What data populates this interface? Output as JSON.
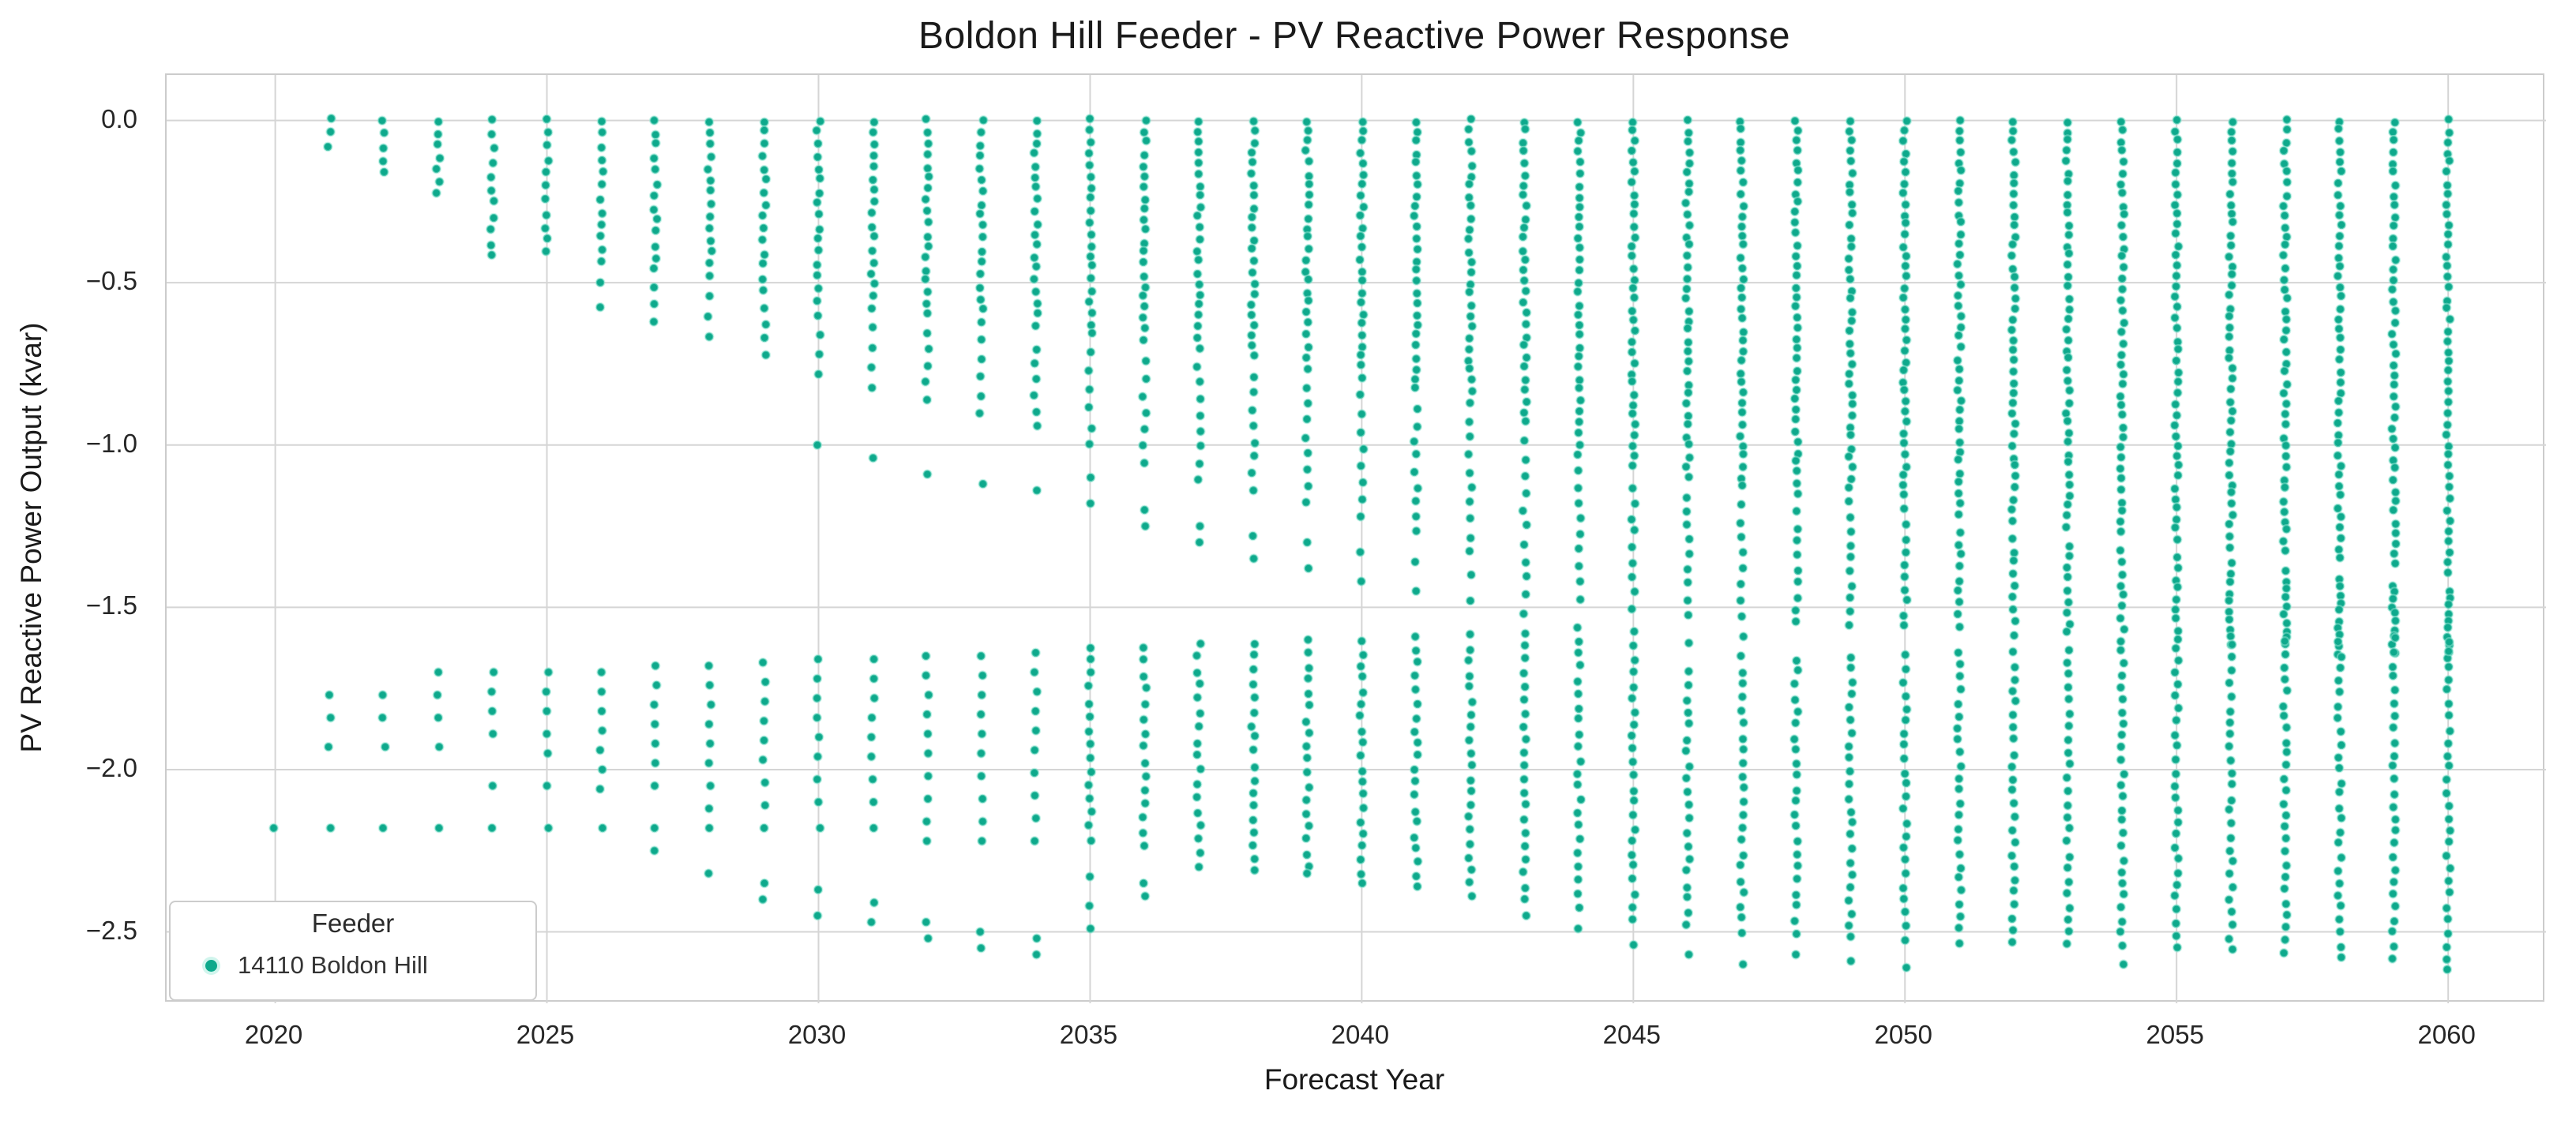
{
  "colors": {
    "marker_fill": "#0ea98c",
    "marker_rim": "#8de6d1",
    "grid": "#d5d5d5",
    "spine": "#cccccc",
    "title_text": "#1a1a1a",
    "tick_text": "#262626"
  },
  "chart_data": {
    "type": "scatter",
    "title": "Boldon Hill Feeder - PV Reactive Power Response",
    "xlabel": "Forecast Year",
    "ylabel": "PV Reactive Power Output (kvar)",
    "grid": true,
    "xlim": [
      2018.0,
      2061.8
    ],
    "ylim": [
      -2.72,
      0.14
    ],
    "xticks": [
      {
        "v": 2020,
        "label": "2020"
      },
      {
        "v": 2025,
        "label": "2025"
      },
      {
        "v": 2030,
        "label": "2030"
      },
      {
        "v": 2035,
        "label": "2035"
      },
      {
        "v": 2040,
        "label": "2040"
      },
      {
        "v": 2045,
        "label": "2045"
      },
      {
        "v": 2050,
        "label": "2050"
      },
      {
        "v": 2055,
        "label": "2055"
      },
      {
        "v": 2060,
        "label": "2060"
      }
    ],
    "yticks": [
      {
        "v": 0.0,
        "label": "0.0"
      },
      {
        "v": -0.5,
        "label": "−0.5"
      },
      {
        "v": -1.0,
        "label": "−1.0"
      },
      {
        "v": -1.5,
        "label": "−1.5"
      },
      {
        "v": -2.0,
        "label": "−2.0"
      },
      {
        "v": -2.5,
        "label": "−2.5"
      }
    ],
    "legend": {
      "title": "Feeder",
      "position": "lower left",
      "entries": [
        {
          "label": "14110 Boldon Hill",
          "marker": "dot",
          "color": "#0ea98c"
        }
      ]
    },
    "series": [
      {
        "name": "14110 Boldon Hill",
        "note": "Each year column: seg = [yStart, yEnd, nPoints] runs of kvar values; pts = individual kvar values.",
        "years": [
          {
            "y": 2020,
            "seg": [],
            "pts": [
              -2.18
            ]
          },
          {
            "y": 2021,
            "seg": [
              [
                0,
                -0.08,
                3
              ]
            ],
            "pts": [
              -1.77,
              -1.84,
              -1.93,
              -2.18
            ]
          },
          {
            "y": 2022,
            "seg": [
              [
                0,
                -0.16,
                5
              ]
            ],
            "pts": [
              -1.77,
              -1.84,
              -1.93,
              -2.18
            ]
          },
          {
            "y": 2023,
            "seg": [
              [
                0,
                -0.22,
                7
              ]
            ],
            "pts": [
              -1.7,
              -1.77,
              -1.84,
              -1.93,
              -2.18
            ]
          },
          {
            "y": 2024,
            "seg": [
              [
                0,
                -0.34,
                9
              ],
              [
                -0.39,
                -0.42,
                2
              ]
            ],
            "pts": [
              -1.7,
              -1.76,
              -1.82,
              -1.89,
              -2.05,
              -2.18
            ]
          },
          {
            "y": 2025,
            "seg": [
              [
                0,
                -0.41,
                11
              ]
            ],
            "pts": [
              -1.7,
              -1.76,
              -1.82,
              -1.89,
              -1.95,
              -2.05,
              -2.18
            ]
          },
          {
            "y": 2026,
            "seg": [
              [
                0,
                -0.44,
                12
              ],
              [
                -0.5,
                -0.58,
                2
              ]
            ],
            "pts": [
              -1.7,
              -1.76,
              -1.82,
              -1.88,
              -1.94,
              -2.0,
              -2.06,
              -2.18
            ]
          },
          {
            "y": 2027,
            "seg": [
              [
                0,
                -0.46,
                13
              ],
              [
                -0.52,
                -0.62,
                3
              ]
            ],
            "pts": [
              -1.68,
              -1.74,
              -1.8,
              -1.86,
              -1.92,
              -1.98,
              -2.05,
              -2.18,
              -2.25
            ]
          },
          {
            "y": 2028,
            "seg": [
              [
                0,
                -0.48,
                14
              ],
              [
                -0.54,
                -0.66,
                3
              ]
            ],
            "pts": [
              -1.68,
              -1.74,
              -1.8,
              -1.86,
              -1.92,
              -1.98,
              -2.05,
              -2.12,
              -2.18,
              -2.32
            ]
          },
          {
            "y": 2029,
            "seg": [
              [
                0,
                -0.52,
                15
              ],
              [
                -0.58,
                -0.72,
                4
              ]
            ],
            "pts": [
              -1.67,
              -1.73,
              -1.79,
              -1.85,
              -1.91,
              -1.97,
              -2.04,
              -2.11,
              -2.18,
              -2.35,
              -2.4
            ]
          },
          {
            "y": 2030,
            "seg": [
              [
                0,
                -0.55,
                16
              ],
              [
                -0.6,
                -0.78,
                4
              ]
            ],
            "pts": [
              -1.0,
              -1.66,
              -1.72,
              -1.78,
              -1.84,
              -1.9,
              -1.96,
              -2.03,
              -2.1,
              -2.18,
              -2.37,
              -2.45
            ]
          },
          {
            "y": 2031,
            "seg": [
              [
                0,
                -0.58,
                17
              ],
              [
                -0.64,
                -0.82,
                4
              ]
            ],
            "pts": [
              -1.04,
              -1.66,
              -1.72,
              -1.78,
              -1.84,
              -1.9,
              -1.96,
              -2.03,
              -2.1,
              -2.18,
              -2.41,
              -2.47
            ]
          },
          {
            "y": 2032,
            "seg": [
              [
                0,
                -0.6,
                18
              ],
              [
                -0.66,
                -0.86,
                5
              ]
            ],
            "pts": [
              -1.09,
              -1.65,
              -1.71,
              -1.77,
              -1.83,
              -1.89,
              -1.95,
              -2.02,
              -2.09,
              -2.16,
              -2.22,
              -2.47,
              -2.52
            ]
          },
          {
            "y": 2033,
            "seg": [
              [
                0,
                -0.62,
                18
              ],
              [
                -0.68,
                -0.9,
                5
              ]
            ],
            "pts": [
              -1.12,
              -1.65,
              -1.71,
              -1.77,
              -1.83,
              -1.89,
              -1.95,
              -2.02,
              -2.09,
              -2.16,
              -2.22,
              -2.5,
              -2.55
            ]
          },
          {
            "y": 2034,
            "seg": [
              [
                0,
                -0.63,
                19
              ],
              [
                -0.7,
                -0.94,
                6
              ]
            ],
            "pts": [
              -1.14,
              -1.64,
              -1.7,
              -1.76,
              -1.82,
              -1.88,
              -1.94,
              -2.01,
              -2.08,
              -2.15,
              -2.22,
              -2.52,
              -2.57
            ]
          },
          {
            "y": 2035,
            "seg": [
              [
                0,
                -0.66,
                20
              ],
              [
                -0.72,
                -1.0,
                6
              ],
              [
                -1.62,
                -2.22,
                15
              ]
            ],
            "pts": [
              -1.1,
              -1.18,
              -2.33,
              -2.42,
              -2.49
            ]
          },
          {
            "y": 2036,
            "seg": [
              [
                0,
                -0.68,
                21
              ],
              [
                -0.74,
                -1.06,
                7
              ],
              [
                -1.62,
                -2.24,
                15
              ]
            ],
            "pts": [
              -1.2,
              -1.25,
              -2.35,
              -2.39
            ]
          },
          {
            "y": 2037,
            "seg": [
              [
                0,
                -0.7,
                22
              ],
              [
                -0.76,
                -1.1,
                8
              ],
              [
                -1.61,
                -2.26,
                16
              ]
            ],
            "pts": [
              -1.25,
              -1.3,
              -2.3
            ]
          },
          {
            "y": 2038,
            "seg": [
              [
                0,
                -0.73,
                23
              ],
              [
                -0.79,
                -1.14,
                8
              ],
              [
                -1.61,
                -2.28,
                17
              ]
            ],
            "pts": [
              -1.28,
              -1.35,
              -2.31
            ]
          },
          {
            "y": 2039,
            "seg": [
              [
                0,
                -0.76,
                24
              ],
              [
                -0.82,
                -1.18,
                8
              ],
              [
                -1.6,
                -2.3,
                18
              ]
            ],
            "pts": [
              -1.3,
              -1.38,
              -2.32
            ]
          },
          {
            "y": 2040,
            "seg": [
              [
                0,
                -0.79,
                25
              ],
              [
                -0.85,
                -1.22,
                8
              ],
              [
                -1.6,
                -2.32,
                19
              ]
            ],
            "pts": [
              -1.33,
              -1.42,
              -2.35
            ]
          },
          {
            "y": 2041,
            "seg": [
              [
                0,
                -0.83,
                26
              ],
              [
                -0.89,
                -1.27,
                9
              ],
              [
                -1.59,
                -2.33,
                19
              ]
            ],
            "pts": [
              -1.36,
              -1.45,
              -2.36
            ]
          },
          {
            "y": 2042,
            "seg": [
              [
                0,
                -0.87,
                27
              ],
              [
                -0.93,
                -1.33,
                9
              ],
              [
                -1.59,
                -2.35,
                20
              ]
            ],
            "pts": [
              -1.4,
              -1.48,
              -2.39
            ]
          },
          {
            "y": 2043,
            "seg": [
              [
                0,
                -0.93,
                29
              ],
              [
                -0.99,
                -1.41,
                9
              ],
              [
                -1.58,
                -2.4,
                21
              ]
            ],
            "pts": [
              -1.46,
              -1.52,
              -2.45
            ]
          },
          {
            "y": 2044,
            "seg": [
              [
                0,
                -1.03,
                32
              ],
              [
                -1.08,
                -1.47,
                9
              ],
              [
                -1.56,
                -2.42,
                22
              ]
            ],
            "pts": [
              -2.49
            ]
          },
          {
            "y": 2045,
            "seg": [
              [
                0,
                -1.07,
                34
              ],
              [
                -1.13,
                -1.5,
                9
              ],
              [
                -1.58,
                -2.46,
                23
              ]
            ],
            "pts": [
              -2.54
            ]
          },
          {
            "y": 2046,
            "seg": [
              [
                0,
                -1.1,
                35
              ],
              [
                -1.16,
                -1.52,
                9
              ],
              [
                -1.7,
                -2.48,
                20
              ]
            ],
            "pts": [
              -1.61,
              -2.57
            ]
          },
          {
            "y": 2047,
            "seg": [
              [
                0,
                -1.13,
                36
              ],
              [
                -1.19,
                -1.53,
                8
              ],
              [
                -1.7,
                -2.5,
                21
              ]
            ],
            "pts": [
              -1.59,
              -1.65,
              -2.6
            ]
          },
          {
            "y": 2048,
            "seg": [
              [
                0,
                -1.15,
                37
              ],
              [
                -1.21,
                -1.55,
                9
              ],
              [
                -1.66,
                -2.5,
                22
              ]
            ],
            "pts": [
              -2.57
            ]
          },
          {
            "y": 2049,
            "seg": [
              [
                0,
                -1.17,
                37
              ],
              [
                -1.23,
                -1.55,
                9
              ],
              [
                -1.65,
                -2.52,
                23
              ]
            ],
            "pts": [
              -2.59
            ]
          },
          {
            "y": 2050,
            "seg": [
              [
                0,
                -1.19,
                38
              ],
              [
                -1.25,
                -1.56,
                9
              ],
              [
                -1.65,
                -2.52,
                23
              ]
            ],
            "pts": [
              -2.61
            ]
          },
          {
            "y": 2051,
            "seg": [
              [
                0,
                -1.21,
                39
              ],
              [
                -1.27,
                -1.56,
                9
              ],
              [
                -1.64,
                -2.53,
                24
              ]
            ],
            "pts": []
          },
          {
            "y": 2052,
            "seg": [
              [
                0,
                -1.23,
                39
              ],
              [
                -1.29,
                -1.58,
                9
              ],
              [
                -1.64,
                -2.53,
                24
              ]
            ],
            "pts": []
          },
          {
            "y": 2053,
            "seg": [
              [
                0,
                -1.25,
                40
              ],
              [
                -1.31,
                -1.58,
                9
              ],
              [
                -1.63,
                -2.54,
                24
              ]
            ],
            "pts": []
          },
          {
            "y": 2054,
            "seg": [
              [
                0,
                -1.27,
                40
              ],
              [
                -1.33,
                -1.6,
                9
              ],
              [
                -1.63,
                -2.54,
                25
              ]
            ],
            "pts": [
              -2.6
            ]
          },
          {
            "y": 2055,
            "seg": [
              [
                0,
                -1.29,
                41
              ],
              [
                -1.35,
                -1.6,
                9
              ],
              [
                -1.62,
                -2.55,
                25
              ]
            ],
            "pts": []
          },
          {
            "y": 2056,
            "seg": [
              [
                0,
                -1.31,
                42
              ],
              [
                -1.37,
                -1.62,
                10
              ],
              [
                -1.62,
                -2.56,
                25
              ]
            ],
            "pts": []
          },
          {
            "y": 2057,
            "seg": [
              [
                0,
                -1.33,
                42
              ],
              [
                -1.39,
                -1.62,
                10
              ],
              [
                -1.61,
                -2.56,
                26
              ]
            ],
            "pts": []
          },
          {
            "y": 2058,
            "seg": [
              [
                0,
                -1.35,
                43
              ],
              [
                -1.41,
                -1.64,
                10
              ],
              [
                -1.61,
                -2.58,
                26
              ]
            ],
            "pts": []
          },
          {
            "y": 2059,
            "seg": [
              [
                0,
                -1.37,
                43
              ],
              [
                -1.43,
                -1.64,
                10
              ],
              [
                -1.6,
                -2.58,
                26
              ]
            ],
            "pts": []
          },
          {
            "y": 2060,
            "seg": [
              [
                0,
                -1.39,
                44
              ],
              [
                -1.45,
                -1.66,
                10
              ],
              [
                -1.6,
                -2.62,
                27
              ]
            ],
            "pts": []
          }
        ]
      }
    ]
  }
}
